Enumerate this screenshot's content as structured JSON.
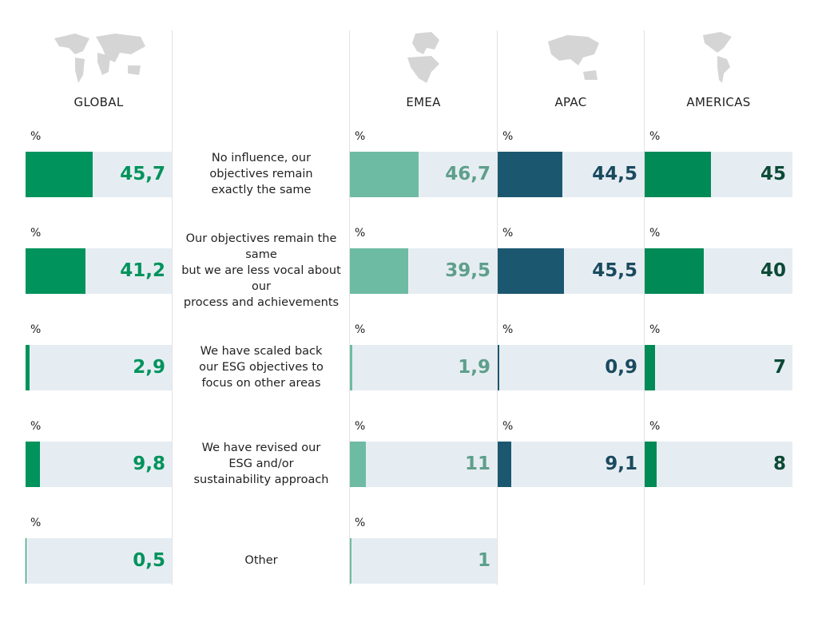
{
  "chart_data": {
    "type": "bar",
    "unit": "%",
    "xlim": [
      0,
      100
    ],
    "categories": [
      "No influence, our\nobjectives remain\nexactly the same",
      "Our objectives remain the same\nbut we are less vocal about our\nprocess and achievements",
      "We have scaled back\nour ESG objectives to\nfocus on other areas",
      "We have revised our\nESG and/or\nsustainability approach",
      "Other"
    ],
    "series": [
      {
        "name": "GLOBAL",
        "color": "#00935c",
        "label_color": "#00935c",
        "values": [
          45.7,
          41.2,
          2.9,
          9.8,
          0.5
        ],
        "value_labels": [
          "45,7",
          "41,2",
          "2,9",
          "9,8",
          "0,5"
        ]
      },
      {
        "name": "EMEA",
        "color": "#6dbba3",
        "label_color": "#5e9f8b",
        "values": [
          46.7,
          39.5,
          1.9,
          11,
          1
        ],
        "value_labels": [
          "46,7",
          "39,5",
          "1,9",
          "11",
          "1"
        ]
      },
      {
        "name": "APAC",
        "color": "#1b5870",
        "label_color": "#1a4a5f",
        "values": [
          44.5,
          45.5,
          0.9,
          9.1,
          null
        ],
        "value_labels": [
          "44,5",
          "45,5",
          "0,9",
          "9,1",
          null
        ]
      },
      {
        "name": "AMERICAS",
        "color": "#008a55",
        "label_color": "#0c4a36",
        "values": [
          45,
          40,
          7,
          8,
          null
        ],
        "value_labels": [
          "45",
          "40",
          "7",
          "8",
          null
        ]
      }
    ]
  }
}
